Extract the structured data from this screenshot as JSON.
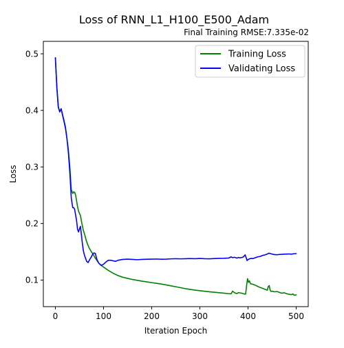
{
  "chart_data": {
    "type": "line",
    "title": "Loss of RNN_L1_H100_E500_Adam",
    "subtitle": "Final Training RMSE:7.335e-02",
    "xlabel": "Iteration Epoch",
    "ylabel": "Loss",
    "xlim": [
      -25,
      525
    ],
    "ylim": [
      0.053,
      0.522
    ],
    "xticks": [
      0,
      100,
      200,
      300,
      400,
      500
    ],
    "xtick_labels": [
      "0",
      "100",
      "200",
      "300",
      "400",
      "500"
    ],
    "yticks": [
      0.1,
      0.2,
      0.3,
      0.4,
      0.5
    ],
    "ytick_labels": [
      "0.1",
      "0.2",
      "0.3",
      "0.4",
      "0.5"
    ],
    "grid": false,
    "legend_position": "top-right",
    "series": [
      {
        "name": "Training Loss",
        "color": "#008000",
        "x": [
          0,
          3,
          6,
          9,
          12,
          15,
          18,
          21,
          24,
          27,
          30,
          33,
          36,
          38,
          40,
          42,
          44,
          46,
          48,
          50,
          52,
          55,
          58,
          61,
          64,
          67,
          70,
          74,
          78,
          82,
          86,
          90,
          95,
          100,
          110,
          120,
          130,
          140,
          150,
          160,
          170,
          180,
          190,
          200,
          210,
          220,
          230,
          240,
          250,
          260,
          270,
          280,
          290,
          300,
          310,
          320,
          330,
          340,
          350,
          360,
          365,
          368,
          371,
          374,
          377,
          380,
          384,
          388,
          392,
          395,
          397,
          399,
          401,
          403,
          405,
          408,
          412,
          416,
          420,
          425,
          430,
          435,
          440,
          442,
          444,
          446,
          448,
          450,
          455,
          460,
          465,
          470,
          475,
          480,
          485,
          490,
          493,
          496,
          500
        ],
        "y": [
          0.493,
          0.44,
          0.405,
          0.398,
          0.402,
          0.392,
          0.382,
          0.37,
          0.35,
          0.33,
          0.3,
          0.26,
          0.253,
          0.256,
          0.255,
          0.25,
          0.24,
          0.23,
          0.222,
          0.218,
          0.214,
          0.2,
          0.188,
          0.18,
          0.17,
          0.163,
          0.157,
          0.151,
          0.146,
          0.14,
          0.135,
          0.13,
          0.126,
          0.123,
          0.117,
          0.112,
          0.108,
          0.105,
          0.103,
          0.101,
          0.0995,
          0.098,
          0.0968,
          0.0955,
          0.0942,
          0.093,
          0.0915,
          0.0898,
          0.0882,
          0.0865,
          0.0848,
          0.0835,
          0.0822,
          0.0812,
          0.0802,
          0.0793,
          0.0785,
          0.0776,
          0.0768,
          0.076,
          0.0758,
          0.0805,
          0.0782,
          0.0768,
          0.0762,
          0.0778,
          0.0772,
          0.0766,
          0.0755,
          0.0752,
          0.09,
          0.1025,
          0.096,
          0.0985,
          0.0935,
          0.093,
          0.092,
          0.0905,
          0.0888,
          0.087,
          0.0855,
          0.0838,
          0.082,
          0.0885,
          0.0902,
          0.082,
          0.0798,
          0.0805,
          0.0792,
          0.0798,
          0.0782,
          0.0768,
          0.0775,
          0.076,
          0.0748,
          0.0742,
          0.0755,
          0.0732,
          0.0738
        ]
      },
      {
        "name": "Validating Loss",
        "color": "#0000ff",
        "x": [
          0,
          3,
          6,
          9,
          12,
          15,
          18,
          21,
          24,
          27,
          30,
          33,
          36,
          38,
          40,
          42,
          44,
          46,
          48,
          50,
          52,
          54,
          56,
          58,
          60,
          62,
          65,
          68,
          71,
          74,
          77,
          80,
          83,
          86,
          90,
          95,
          100,
          105,
          110,
          115,
          120,
          125,
          130,
          140,
          150,
          160,
          170,
          180,
          190,
          200,
          210,
          220,
          230,
          240,
          250,
          260,
          270,
          280,
          290,
          300,
          310,
          320,
          330,
          340,
          350,
          360,
          365,
          368,
          371,
          374,
          377,
          380,
          383,
          386,
          389,
          392,
          394,
          396,
          398,
          400,
          403,
          406,
          410,
          415,
          420,
          425,
          430,
          435,
          440,
          443,
          446,
          449,
          452,
          455,
          460,
          465,
          470,
          475,
          480,
          485,
          490,
          495,
          500
        ],
        "y": [
          0.493,
          0.442,
          0.407,
          0.397,
          0.403,
          0.391,
          0.38,
          0.368,
          0.35,
          0.325,
          0.29,
          0.245,
          0.228,
          0.228,
          0.225,
          0.215,
          0.205,
          0.19,
          0.185,
          0.19,
          0.195,
          0.18,
          0.165,
          0.152,
          0.145,
          0.14,
          0.133,
          0.131,
          0.136,
          0.14,
          0.145,
          0.148,
          0.147,
          0.137,
          0.13,
          0.126,
          0.128,
          0.132,
          0.135,
          0.135,
          0.134,
          0.133,
          0.135,
          0.1365,
          0.137,
          0.1365,
          0.136,
          0.1365,
          0.1368,
          0.137,
          0.1372,
          0.1368,
          0.137,
          0.1375,
          0.1378,
          0.1375,
          0.1378,
          0.138,
          0.1377,
          0.1382,
          0.1378,
          0.1376,
          0.138,
          0.1383,
          0.1385,
          0.139,
          0.141,
          0.1395,
          0.1403,
          0.1398,
          0.1388,
          0.14,
          0.1393,
          0.1398,
          0.1403,
          0.1425,
          0.1445,
          0.14,
          0.1345,
          0.1362,
          0.1375,
          0.1382,
          0.138,
          0.1395,
          0.141,
          0.1418,
          0.1435,
          0.1445,
          0.146,
          0.1475,
          0.147,
          0.1462,
          0.1455,
          0.145,
          0.1448,
          0.1452,
          0.1455,
          0.1458,
          0.146,
          0.1462,
          0.1458,
          0.1465,
          0.1468
        ]
      }
    ]
  }
}
